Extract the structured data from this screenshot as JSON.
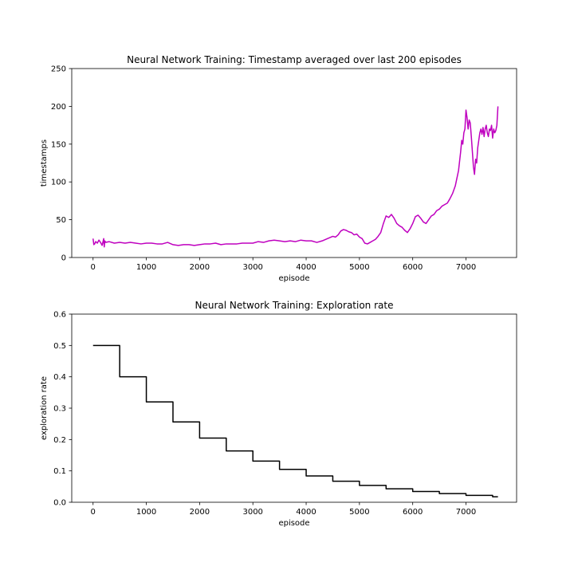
{
  "chart_data": [
    {
      "type": "line",
      "title": "Neural Network Training: Timestamp averaged over last 200 episodes",
      "xlabel": "episode",
      "ylabel": "timestamps",
      "xlim": [
        -400,
        7950
      ],
      "ylim": [
        0,
        250
      ],
      "xticks": [
        0,
        1000,
        2000,
        3000,
        4000,
        5000,
        6000,
        7000
      ],
      "yticks": [
        0,
        50,
        100,
        150,
        200,
        250
      ],
      "grid": false,
      "color": "#bf00bf",
      "series": [
        {
          "x": [
            0,
            15,
            30,
            50,
            80,
            110,
            140,
            170,
            200,
            210,
            220,
            240,
            300,
            400,
            500,
            600,
            700,
            800,
            900,
            1000,
            1100,
            1200,
            1300,
            1400,
            1500,
            1600,
            1700,
            1800,
            1900,
            2000,
            2100,
            2200,
            2300,
            2400,
            2500,
            2600,
            2700,
            2800,
            2900,
            3000,
            3100,
            3200,
            3300,
            3400,
            3500,
            3600,
            3700,
            3800,
            3900,
            4000,
            4100,
            4200,
            4300,
            4400,
            4500,
            4550,
            4600,
            4650,
            4700,
            4750,
            4800,
            4850,
            4900,
            4950,
            5000,
            5050,
            5100,
            5150,
            5200,
            5250,
            5300,
            5350,
            5400,
            5450,
            5500,
            5550,
            5600,
            5650,
            5700,
            5750,
            5800,
            5850,
            5900,
            5950,
            6000,
            6050,
            6100,
            6150,
            6200,
            6250,
            6300,
            6350,
            6400,
            6450,
            6500,
            6550,
            6600,
            6650,
            6700,
            6750,
            6800,
            6830,
            6860,
            6900,
            6920,
            6940,
            6960,
            6980,
            7000,
            7020,
            7040,
            7060,
            7080,
            7100,
            7120,
            7140,
            7160,
            7180,
            7200,
            7220,
            7240,
            7260,
            7280,
            7300,
            7320,
            7340,
            7360,
            7380,
            7400,
            7420,
            7440,
            7460,
            7480,
            7500,
            7520,
            7540,
            7560,
            7580,
            7600
          ],
          "y": [
            25,
            17,
            18,
            21,
            19,
            23,
            20,
            16,
            25,
            14,
            22,
            20,
            21,
            19,
            20,
            19,
            20,
            19,
            18,
            19,
            19,
            18,
            18,
            20,
            17,
            16,
            17,
            17,
            16,
            17,
            18,
            18,
            19,
            17,
            18,
            18,
            18,
            19,
            19,
            19,
            21,
            20,
            22,
            23,
            22,
            21,
            22,
            21,
            23,
            22,
            22,
            20,
            22,
            25,
            28,
            27,
            30,
            35,
            37,
            36,
            34,
            33,
            30,
            31,
            27,
            25,
            19,
            18,
            20,
            22,
            24,
            28,
            33,
            45,
            55,
            53,
            57,
            52,
            45,
            42,
            40,
            36,
            33,
            38,
            45,
            54,
            56,
            52,
            47,
            45,
            50,
            55,
            57,
            62,
            64,
            68,
            70,
            72,
            78,
            85,
            95,
            105,
            115,
            140,
            155,
            150,
            165,
            170,
            195,
            185,
            170,
            182,
            178,
            160,
            140,
            120,
            110,
            130,
            125,
            145,
            155,
            165,
            170,
            163,
            172,
            160,
            170,
            175,
            165,
            160,
            170,
            168,
            175,
            158,
            170,
            165,
            168,
            175,
            200
          ]
        }
      ]
    },
    {
      "type": "line",
      "title": "Neural Network Training: Exploration rate",
      "xlabel": "episode",
      "ylabel": "exploration rate",
      "xlim": [
        -400,
        7950
      ],
      "ylim": [
        0,
        0.6
      ],
      "xticks": [
        0,
        1000,
        2000,
        3000,
        4000,
        5000,
        6000,
        7000
      ],
      "yticks": [
        0.0,
        0.1,
        0.2,
        0.3,
        0.4,
        0.5,
        0.6
      ],
      "ytick_labels": [
        "0.0",
        "0.1",
        "0.2",
        "0.3",
        "0.4",
        "0.5",
        "0.6"
      ],
      "grid": false,
      "color": "#000000",
      "step": true,
      "series": [
        {
          "x": [
            0,
            500,
            1000,
            1500,
            2000,
            2500,
            3000,
            3500,
            4000,
            4500,
            5000,
            5500,
            6000,
            6500,
            7000,
            7500,
            7600
          ],
          "y": [
            0.5,
            0.4,
            0.32,
            0.256,
            0.2048,
            0.1638,
            0.1311,
            0.1049,
            0.0839,
            0.0671,
            0.0537,
            0.0429,
            0.0344,
            0.0275,
            0.022,
            0.0176,
            0.0176
          ]
        }
      ]
    }
  ]
}
